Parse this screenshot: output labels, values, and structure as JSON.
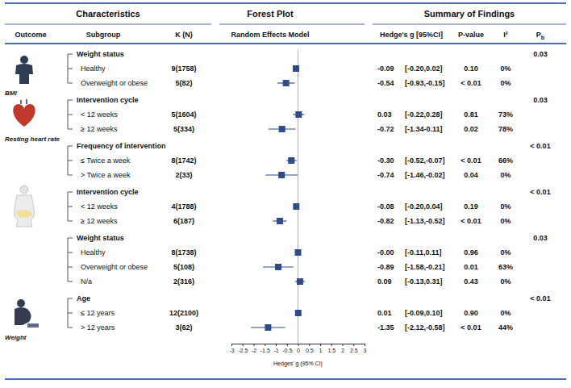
{
  "chart_data": {
    "type": "forest",
    "color": "#2f4b8a",
    "headers": {
      "characteristics": "Characteristics",
      "forest_plot": "Forest Plot",
      "summary": "Summary of Findings",
      "outcome": "Outcome",
      "subgroup": "Subgroup",
      "k_n": "K (N)",
      "model": "Random Effects Model",
      "g": "Hedge's g [95%CI]",
      "p": "P-value",
      "i2": "I²",
      "pb": [
        "P",
        "b"
      ]
    },
    "x_label": "Hedges' g (95% CI)",
    "xlim": [
      -3,
      3
    ],
    "xticks": [
      -3,
      -2.5,
      -2,
      -1.5,
      -1,
      -0.5,
      0,
      0.5,
      1,
      1.5,
      2,
      2.5,
      3
    ],
    "reference_x": 0,
    "outcomes": [
      {
        "label": "BMI",
        "groups": [
          {
            "label": "Weight status",
            "pb": "0.03",
            "rows": [
              {
                "subgroup": "Healthy",
                "k_n": "9(1758)",
                "g": -0.09,
                "g_label": "-0.09",
                "ci_low": -0.2,
                "ci_high": 0.02,
                "ci_label": "[-0.20,0.02]",
                "p": "0.10",
                "i2": "0%"
              },
              {
                "subgroup": "Overweight or obese",
                "k_n": "5(82)",
                "g": -0.54,
                "g_label": "-0.54",
                "ci_low": -0.93,
                "ci_high": -0.15,
                "ci_label": "[-0.93,-0.15]",
                "p": "< 0.01",
                "i2": "0%"
              }
            ]
          }
        ]
      },
      {
        "label": "Resting heart rate",
        "groups": [
          {
            "label": "Intervention cycle",
            "pb": "0.03",
            "rows": [
              {
                "subgroup": "< 12 weeks",
                "k_n": "5(1604)",
                "g": 0.03,
                "g_label": "0.03",
                "ci_low": -0.22,
                "ci_high": 0.28,
                "ci_label": "[-0.22,0.28]",
                "p": "0.81",
                "i2": "73%"
              },
              {
                "subgroup": "≥ 12 weeks",
                "k_n": "5(334)",
                "g": -0.72,
                "g_label": "-0.72",
                "ci_low": -1.34,
                "ci_high": -0.11,
                "ci_label": "[-1.34-0.11]",
                "p": "0.02",
                "i2": "78%"
              }
            ]
          }
        ]
      },
      {
        "groups": [
          {
            "label": "Frequency of intervention",
            "pb": "< 0.01",
            "rows": [
              {
                "subgroup": "≤ Twice a week",
                "k_n": "8(1742)",
                "g": -0.3,
                "g_label": "-0.30",
                "ci_low": -0.52,
                "ci_high": -0.07,
                "ci_label": "[-0.52,-0.07]",
                "p": "< 0.01",
                "i2": "66%"
              },
              {
                "subgroup": "> Twice a week",
                "k_n": "2(33)",
                "g": -0.74,
                "g_label": "-0.74",
                "ci_low": -1.46,
                "ci_high": -0.02,
                "ci_label": "[-1.46,-0.02]",
                "p": "0.04",
                "i2": "0%"
              }
            ]
          },
          {
            "label": "Intervention cycle",
            "pb": "< 0.01",
            "rows": [
              {
                "subgroup": "< 12 weeks",
                "k_n": "4(1788)",
                "g": -0.08,
                "g_label": "-0.08",
                "ci_low": -0.2,
                "ci_high": 0.04,
                "ci_label": "[-0.20,0.04]",
                "p": "0.19",
                "i2": "0%"
              },
              {
                "subgroup": "≥ 12 weeks",
                "k_n": "6(187)",
                "g": -0.82,
                "g_label": "-0.82",
                "ci_low": -1.13,
                "ci_high": -0.52,
                "ci_label": "[-1.13,-0.52]",
                "p": "< 0.01",
                "i2": "0%"
              }
            ]
          }
        ]
      },
      {
        "label": "Weight",
        "groups": [
          {
            "label": "Weight status",
            "pb": "0.03",
            "rows": [
              {
                "subgroup": "Healthy",
                "k_n": "8(1738)",
                "g": 0,
                "g_label": "-0.00",
                "ci_low": -0.11,
                "ci_high": 0.11,
                "ci_label": "[-0.11,0.11]",
                "p": "0.96",
                "i2": "0%"
              },
              {
                "subgroup": "Overweight or obese",
                "k_n": "5(108)",
                "g": -0.89,
                "g_label": "-0.89",
                "ci_low": -1.58,
                "ci_high": -0.21,
                "ci_label": "[-1.58,-0.21]",
                "p": "0.01",
                "i2": "63%"
              },
              {
                "subgroup": "N/a",
                "k_n": "2(316)",
                "g": 0.09,
                "g_label": "0.09",
                "ci_low": -0.13,
                "ci_high": 0.31,
                "ci_label": "[-0.13,0.31]",
                "p": "0.43",
                "i2": "0%"
              }
            ]
          },
          {
            "label": "Age",
            "pb": "< 0.01",
            "rows": [
              {
                "subgroup": "≤ 12 years",
                "k_n": "12(2100)",
                "g": 0.01,
                "g_label": "0.01",
                "ci_low": -0.09,
                "ci_high": 0.1,
                "ci_label": "[-0.09,0.10]",
                "p": "0.90",
                "i2": "0%"
              },
              {
                "subgroup": "> 12 years",
                "k_n": "3(62)",
                "g": -1.35,
                "g_label": "-1.35",
                "ci_low": -2.12,
                "ci_high": -0.58,
                "ci_label": "[-2.12,-0.58]",
                "p": "< 0.01",
                "i2": "44%"
              }
            ]
          }
        ]
      }
    ]
  }
}
